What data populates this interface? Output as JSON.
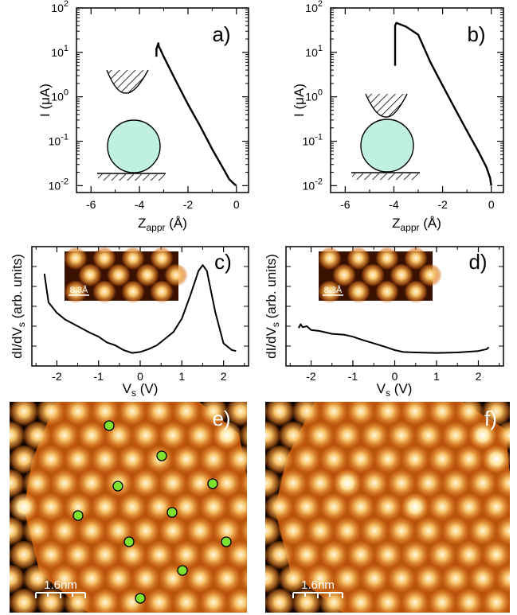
{
  "chart_data": [
    {
      "panel": "a)",
      "type": "line",
      "xlabel": "Z",
      "xlabel_sub": "appr",
      "xlabel_unit": "(Å)",
      "ylabel": "I (μA)",
      "yscale": "log",
      "xlim": [
        -6.6,
        0.5
      ],
      "ylim": [
        0.007,
        100
      ],
      "x_ticks": [
        "-6",
        "-4",
        "-2",
        "0"
      ],
      "y_ticks": [
        "10",
        "10",
        "10",
        "10",
        "10"
      ],
      "y_tick_exponents": [
        "2",
        "1",
        "0",
        "-1",
        "-2"
      ],
      "series": [
        {
          "x": [
            -3.3,
            -3.3,
            -3.22,
            -3.2,
            -3.15,
            -3.0,
            -2.5,
            -2.0,
            -1.5,
            -1.0,
            -0.5,
            -0.3,
            -0.1,
            0.0
          ],
          "y": [
            8.0,
            12.0,
            16.0,
            13.5,
            12.0,
            8.0,
            2.3,
            0.68,
            0.22,
            0.066,
            0.022,
            0.014,
            0.011,
            0.01
          ]
        }
      ],
      "inset": "tip-above-molecule-far"
    },
    {
      "panel": "b)",
      "type": "line",
      "xlabel": "Z",
      "xlabel_sub": "appr",
      "xlabel_unit": "(Å)",
      "ylabel": "I (μA)",
      "yscale": "log",
      "xlim": [
        -6.6,
        0.5
      ],
      "ylim": [
        0.007,
        100
      ],
      "x_ticks": [
        "-6",
        "-4",
        "-2",
        "0"
      ],
      "y_ticks": [
        "10",
        "10",
        "10",
        "10",
        "10"
      ],
      "y_tick_exponents": [
        "2",
        "1",
        "0",
        "-1",
        "-2"
      ],
      "series": [
        {
          "x": [
            -3.95,
            -3.95,
            -3.9,
            -3.5,
            -3.0,
            -2.5,
            -2.0,
            -1.5,
            -1.0,
            -0.5,
            -0.2,
            -0.05,
            0.0
          ],
          "y": [
            5.0,
            40.0,
            46.0,
            38.0,
            25.0,
            6.0,
            1.8,
            0.55,
            0.17,
            0.055,
            0.026,
            0.015,
            0.01
          ]
        }
      ],
      "inset": "tip-contacting-molecule"
    },
    {
      "panel": "c)",
      "type": "line",
      "xlabel": "V",
      "xlabel_sub": "s",
      "xlabel_unit": "(V)",
      "ylabel": "dI/dV",
      "ylabel_sub": "s",
      "ylabel_unit": "(arb. units)",
      "xlim": [
        -2.6,
        2.6
      ],
      "x_ticks": [
        "-2",
        "-1",
        "0",
        "1",
        "2"
      ],
      "series": [
        {
          "x": [
            -2.3,
            -2.2,
            -2.0,
            -1.8,
            -1.5,
            -1.2,
            -1.0,
            -0.8,
            -0.6,
            -0.4,
            -0.2,
            0.0,
            0.2,
            0.4,
            0.6,
            0.8,
            1.0,
            1.2,
            1.4,
            1.5,
            1.6,
            1.8,
            2.0,
            2.2,
            2.3
          ],
          "y": [
            0.85,
            0.55,
            0.44,
            0.37,
            0.3,
            0.23,
            0.19,
            0.13,
            0.1,
            0.05,
            0.02,
            0.03,
            0.06,
            0.1,
            0.17,
            0.24,
            0.38,
            0.62,
            0.88,
            0.94,
            0.88,
            0.45,
            0.12,
            0.05,
            0.04
          ]
        }
      ],
      "inset_scale": "8.3Å"
    },
    {
      "panel": "d)",
      "type": "line",
      "xlabel": "V",
      "xlabel_sub": "s",
      "xlabel_unit": "(V)",
      "ylabel": "dI/dV",
      "ylabel_sub": "s",
      "ylabel_unit": "(arb. units)",
      "xlim": [
        -2.6,
        2.6
      ],
      "x_ticks": [
        "-2",
        "-1",
        "0",
        "1",
        "2"
      ],
      "series": [
        {
          "x": [
            -2.3,
            -2.25,
            -2.2,
            -2.1,
            -2.0,
            -1.8,
            -1.5,
            -1.2,
            -1.0,
            -0.8,
            -0.5,
            -0.2,
            0.0,
            0.2,
            0.5,
            1.0,
            1.5,
            2.0,
            2.2,
            2.25
          ],
          "y": [
            0.28,
            0.32,
            0.29,
            0.3,
            0.26,
            0.25,
            0.22,
            0.21,
            0.19,
            0.16,
            0.12,
            0.08,
            0.05,
            0.03,
            0.025,
            0.02,
            0.025,
            0.04,
            0.06,
            0.08
          ]
        }
      ],
      "inset_scale": "8.3Å"
    },
    {
      "panel": "e)",
      "type": "heatmap",
      "scale_bar": "1.6nm",
      "marked_molecules": 11
    },
    {
      "panel": "f)",
      "type": "heatmap",
      "scale_bar": "1.6nm"
    }
  ],
  "colors": {
    "curve": "#000000",
    "molecule_fill": "#bff0e2",
    "stm_dark": "#120400",
    "stm_mid": "#c45d10",
    "stm_bright": "#fff6d8",
    "marker": "#7fe32d"
  }
}
